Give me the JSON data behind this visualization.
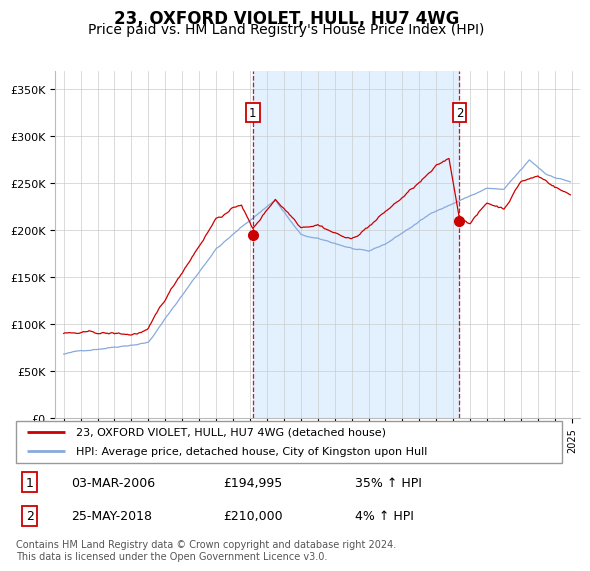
{
  "title": "23, OXFORD VIOLET, HULL, HU7 4WG",
  "subtitle": "Price paid vs. HM Land Registry's House Price Index (HPI)",
  "title_fontsize": 12,
  "subtitle_fontsize": 10,
  "ylim": [
    0,
    370000
  ],
  "yticks": [
    0,
    50000,
    100000,
    150000,
    200000,
    250000,
    300000,
    350000
  ],
  "ytick_labels": [
    "£0",
    "£50K",
    "£100K",
    "£150K",
    "£200K",
    "£250K",
    "£300K",
    "£350K"
  ],
  "sale1_date": "03-MAR-2006",
  "sale1_price": 194995,
  "sale1_hpi": "35% ↑ HPI",
  "sale2_date": "25-MAY-2018",
  "sale2_price": 210000,
  "sale2_hpi": "4% ↑ HPI",
  "sale1_x": 2006.17,
  "sale2_x": 2018.37,
  "line1_color": "#cc0000",
  "line2_color": "#88aadd",
  "shade_color": "#ddeeff",
  "vline_color": "#cc0000",
  "marker_color": "#cc0000",
  "grid_color": "#cccccc",
  "bg_color": "#ffffff",
  "legend_label1": "23, OXFORD VIOLET, HULL, HU7 4WG (detached house)",
  "legend_label2": "HPI: Average price, detached house, City of Kingston upon Hull",
  "footer": "Contains HM Land Registry data © Crown copyright and database right 2024.\nThis data is licensed under the Open Government Licence v3.0."
}
